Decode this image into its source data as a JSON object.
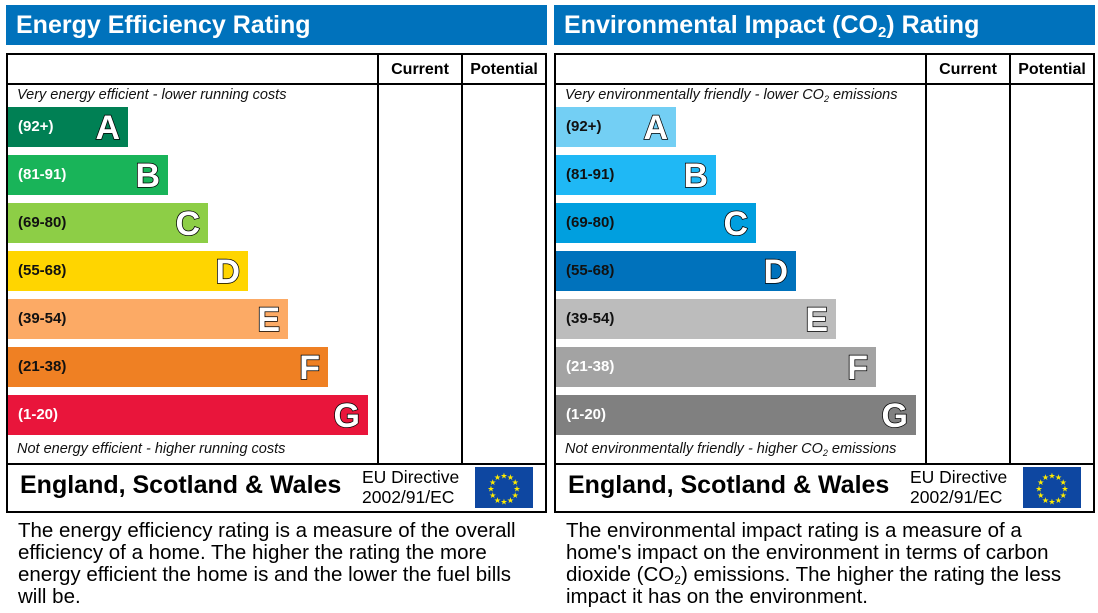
{
  "chart_data": [
    {
      "type": "bar",
      "title": "Energy Efficiency Rating",
      "columns": [
        "Current",
        "Potential"
      ],
      "top_note": "Very energy efficient - lower running costs",
      "bottom_note": "Not energy efficient - higher running costs",
      "categories": [
        "A",
        "B",
        "C",
        "D",
        "E",
        "F",
        "G"
      ],
      "ranges": [
        "(92+)",
        "(81-91)",
        "(69-80)",
        "(55-68)",
        "(39-54)",
        "(21-38)",
        "(1-20)"
      ],
      "colors": [
        "#008054",
        "#19b459",
        "#8dce46",
        "#ffd500",
        "#fcaa65",
        "#ef8023",
        "#e9153b"
      ],
      "label_colors": [
        "#ffffff",
        "#ffffff",
        "#111111",
        "#111111",
        "#111111",
        "#111111",
        "#ffffff"
      ],
      "current": null,
      "potential": null,
      "footer": {
        "country": "England, Scotland & Wales",
        "directive_line1": "EU Directive",
        "directive_line2": "2002/91/EC"
      },
      "description": "The energy efficiency rating is a measure of the overall efficiency of a home. The higher the rating the more energy efficient the home is and the lower the fuel bills will be."
    },
    {
      "type": "bar",
      "title": "Environmental Impact (CO2) Rating",
      "columns": [
        "Current",
        "Potential"
      ],
      "top_note": "Very environmentally friendly - lower CO2 emissions",
      "bottom_note": "Not environmentally friendly - higher CO2 emissions",
      "categories": [
        "A",
        "B",
        "C",
        "D",
        "E",
        "F",
        "G"
      ],
      "ranges": [
        "(92+)",
        "(81-91)",
        "(69-80)",
        "(55-68)",
        "(39-54)",
        "(21-38)",
        "(1-20)"
      ],
      "colors": [
        "#73cff4",
        "#1fb8f5",
        "#009fdf",
        "#0072bc",
        "#bcbcbc",
        "#a3a3a3",
        "#808080"
      ],
      "label_colors": [
        "#111111",
        "#111111",
        "#111111",
        "#111111",
        "#111111",
        "#ffffff",
        "#ffffff"
      ],
      "current": null,
      "potential": null,
      "footer": {
        "country": "England, Scotland & Wales",
        "directive_line1": "EU Directive",
        "directive_line2": "2002/91/EC"
      },
      "description": "The environmental impact rating is a measure of a home's impact on the environment in terms of carbon dioxide (CO2) emissions. The higher the rating the less impact it has on the environment."
    }
  ]
}
